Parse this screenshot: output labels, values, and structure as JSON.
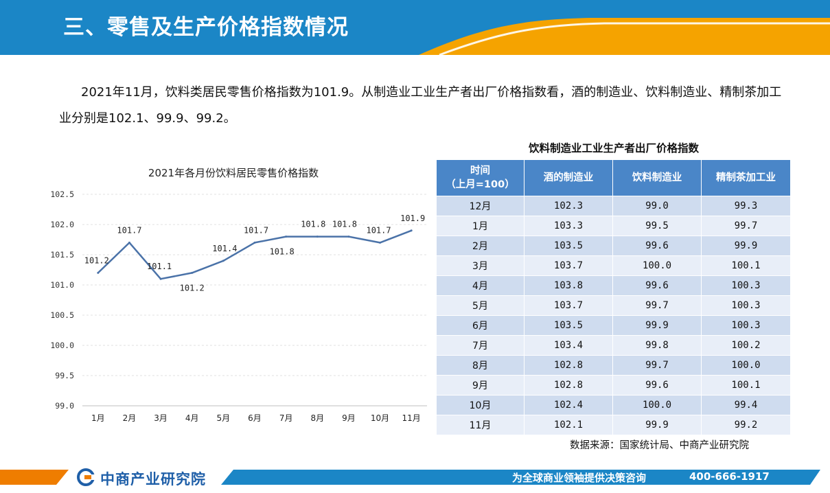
{
  "header": {
    "title": "三、零售及生产价格指数情况",
    "colors": {
      "blue": "#1b86c6",
      "orange": "#f5a300"
    }
  },
  "intro": {
    "text": "2021年11月，饮料类居民零售价格指数为101.9。从制造业工业生产者出厂价格指数看，酒的制造业、饮料制造业、精制茶加工业分别是102.1、99.9、99.2。"
  },
  "chart_data": {
    "type": "line",
    "title": "2021年各月份饮料居民零售价格指数",
    "categories": [
      "1月",
      "2月",
      "3月",
      "4月",
      "5月",
      "6月",
      "7月",
      "8月",
      "9月",
      "10月",
      "11月"
    ],
    "values": [
      101.2,
      101.7,
      101.1,
      101.2,
      101.4,
      101.7,
      101.8,
      101.8,
      101.8,
      101.7,
      101.9
    ],
    "value_labels": [
      "101.2",
      "101.7",
      "101.1",
      "101.2",
      "101.4",
      "101.7",
      "101.8",
      "101.8",
      "101.8",
      "101.7",
      "101.9"
    ],
    "ylim": [
      99.0,
      102.5
    ],
    "yticks": [
      "99.0",
      "99.5",
      "100.0",
      "100.5",
      "101.0",
      "101.5",
      "102.0",
      "102.5"
    ],
    "grid": true,
    "line_color": "#4a72a8"
  },
  "table": {
    "title": "饮料制造业工业生产者出厂价格指数",
    "headers": [
      "时间\n（上月=100）",
      "酒的制造业",
      "饮料制造业",
      "精制茶加工业"
    ],
    "rows": [
      [
        "12月",
        "102.3",
        "99.0",
        "99.3"
      ],
      [
        "1月",
        "103.3",
        "99.5",
        "99.7"
      ],
      [
        "2月",
        "103.5",
        "99.6",
        "99.9"
      ],
      [
        "3月",
        "103.7",
        "100.0",
        "100.1"
      ],
      [
        "4月",
        "103.8",
        "99.6",
        "100.3"
      ],
      [
        "5月",
        "103.7",
        "99.7",
        "100.3"
      ],
      [
        "6月",
        "103.5",
        "99.9",
        "100.3"
      ],
      [
        "7月",
        "103.4",
        "99.8",
        "100.2"
      ],
      [
        "8月",
        "102.8",
        "99.7",
        "100.0"
      ],
      [
        "9月",
        "102.8",
        "99.6",
        "100.1"
      ],
      [
        "10月",
        "102.4",
        "100.0",
        "99.4"
      ],
      [
        "11月",
        "102.1",
        "99.9",
        "99.2"
      ]
    ]
  },
  "source": "数据来源：国家统计局、中商产业研究院",
  "footer": {
    "logo_text": "中商产业研究院",
    "slogan": "为全球商业领袖提供决策咨询",
    "phone": "400-666-1917"
  }
}
